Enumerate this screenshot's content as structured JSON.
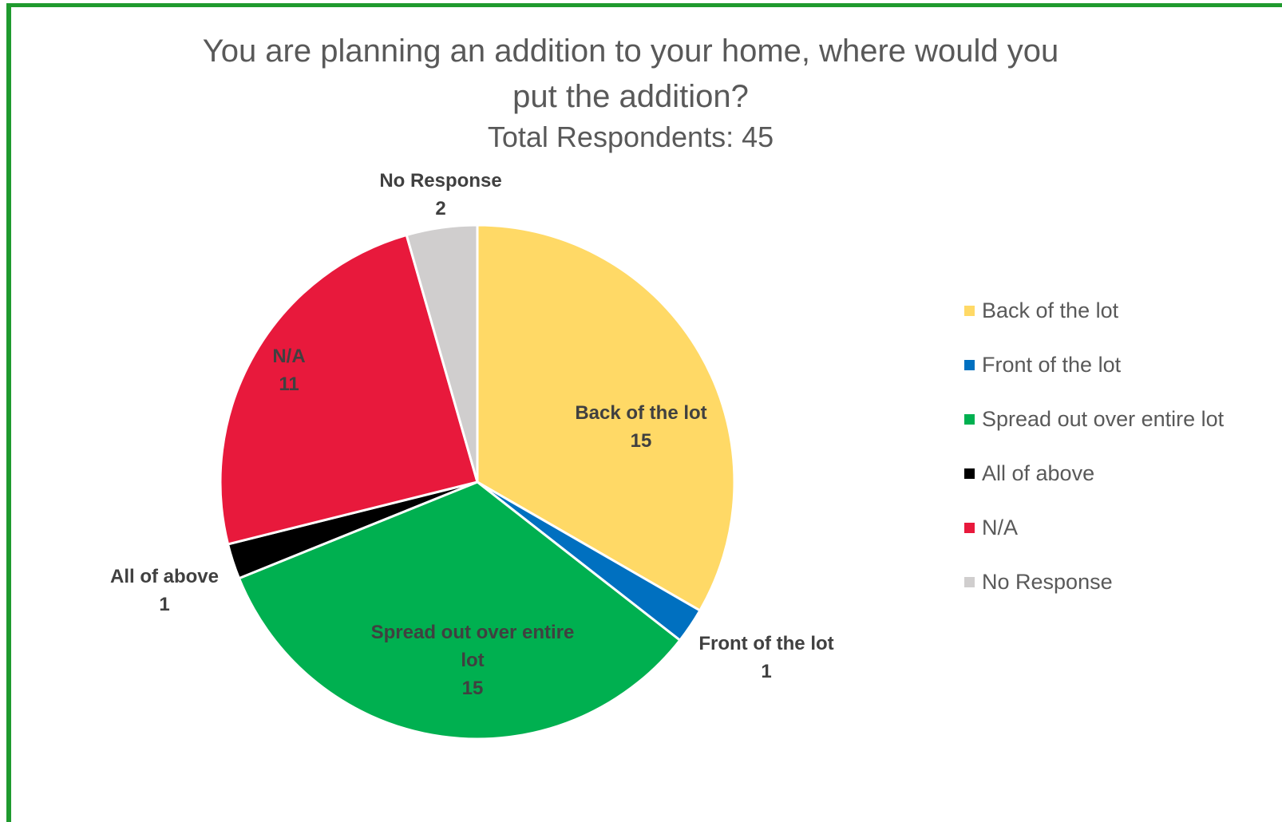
{
  "chart_data": {
    "type": "pie",
    "title": "You are planning an addition to your home, where would you\nput the addition?",
    "subtitle": "Total Respondents:  45",
    "categories": [
      "Back of the lot",
      "Front of the lot",
      "Spread out over entire lot",
      "All of above",
      "N/A",
      "No Response"
    ],
    "values": [
      15,
      1,
      15,
      1,
      11,
      2
    ],
    "colors": [
      "#FFD966",
      "#0070C0",
      "#00B050",
      "#000000",
      "#E8193C",
      "#D0CECE"
    ],
    "data_labels": [
      {
        "name": "Back of the lot",
        "value": "15"
      },
      {
        "name": "Front of the lot",
        "value": "1"
      },
      {
        "name": "Spread out over entire lot",
        "value": "15"
      },
      {
        "name": "All of above",
        "value": "1"
      },
      {
        "name": "N/A",
        "value": "11"
      },
      {
        "name": "No Response",
        "value": "2"
      }
    ],
    "start_angle_deg": 0,
    "direction": "clockwise",
    "legend": {
      "position": "right",
      "items": [
        {
          "label": "Back of the lot",
          "color": "#FFD966"
        },
        {
          "label": "Front of the lot",
          "color": "#0070C0"
        },
        {
          "label": "Spread out over entire lot",
          "color": "#00B050"
        },
        {
          "label": "All of above",
          "color": "#000000"
        },
        {
          "label": "N/A",
          "color": "#E8193C"
        },
        {
          "label": "No Response",
          "color": "#D0CECE"
        }
      ]
    }
  },
  "frame_color": "#1F9A2E"
}
